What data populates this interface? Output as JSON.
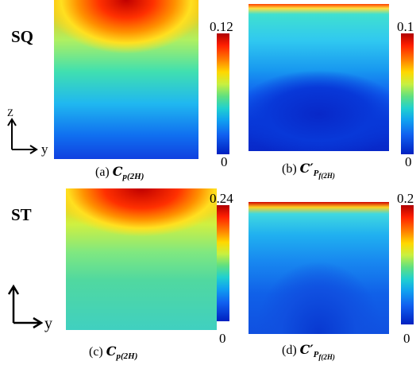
{
  "rows": [
    {
      "label": "SQ",
      "panels": [
        {
          "caption": {
            "tag": "(a)",
            "symbol": "C",
            "sub": "p(2H)"
          },
          "colorbar": {
            "max": "0.12",
            "min": "0"
          }
        },
        {
          "caption": {
            "tag": "(b)",
            "symbol": "C′",
            "sub": "P",
            "subsub": "f(2H)"
          },
          "colorbar": {
            "max": "0.1",
            "min": "0"
          }
        }
      ]
    },
    {
      "label": "ST",
      "panels": [
        {
          "caption": {
            "tag": "(c)",
            "symbol": "C",
            "sub": "p(2H)"
          },
          "colorbar": {
            "max": "0.24",
            "min": "0"
          }
        },
        {
          "caption": {
            "tag": "(d)",
            "symbol": "C′",
            "sub": "P",
            "subsub": "f(2H)"
          },
          "colorbar": {
            "max": "0.2",
            "min": "0"
          }
        }
      ]
    }
  ],
  "axes": {
    "vertical": "Z",
    "horizontal": "y"
  }
}
